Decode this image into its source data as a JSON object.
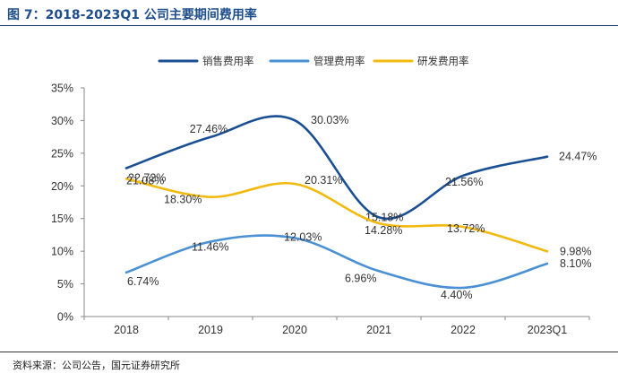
{
  "figure": {
    "title": "图 7：2018-2023Q1 公司主要期间费用率",
    "source": "资料来源：公司公告，国元证券研究所"
  },
  "chart_data": {
    "type": "line",
    "categories": [
      "2018",
      "2019",
      "2020",
      "2021",
      "2022",
      "2023Q1"
    ],
    "y_unit": "percent",
    "ylim": [
      0,
      35
    ],
    "yticks": [
      "0%",
      "5%",
      "10%",
      "15%",
      "20%",
      "25%",
      "30%",
      "35%"
    ],
    "grid": false,
    "smooth": true,
    "legend_position": "top-center",
    "series": [
      {
        "name": "销售费用率",
        "color": "#1a4f94",
        "values": [
          22.72,
          27.46,
          30.03,
          15.18,
          21.56,
          24.47
        ],
        "labels": [
          "22.72%",
          "27.46%",
          "30.03%",
          "15.18%",
          "21.56%",
          "24.47%"
        ]
      },
      {
        "name": "管理费用率",
        "color": "#4a90d4",
        "values": [
          6.74,
          11.46,
          12.03,
          6.96,
          4.4,
          8.1
        ],
        "labels": [
          "6.74%",
          "11.46%",
          "12.03%",
          "6.96%",
          "4.40%",
          "8.10%"
        ]
      },
      {
        "name": "研发费用率",
        "color": "#f2b90f",
        "values": [
          21.08,
          18.3,
          20.31,
          14.28,
          13.72,
          9.98
        ],
        "labels": [
          "21.08%",
          "18.30%",
          "20.31%",
          "14.28%",
          "13.72%",
          "9.98%"
        ]
      }
    ]
  }
}
